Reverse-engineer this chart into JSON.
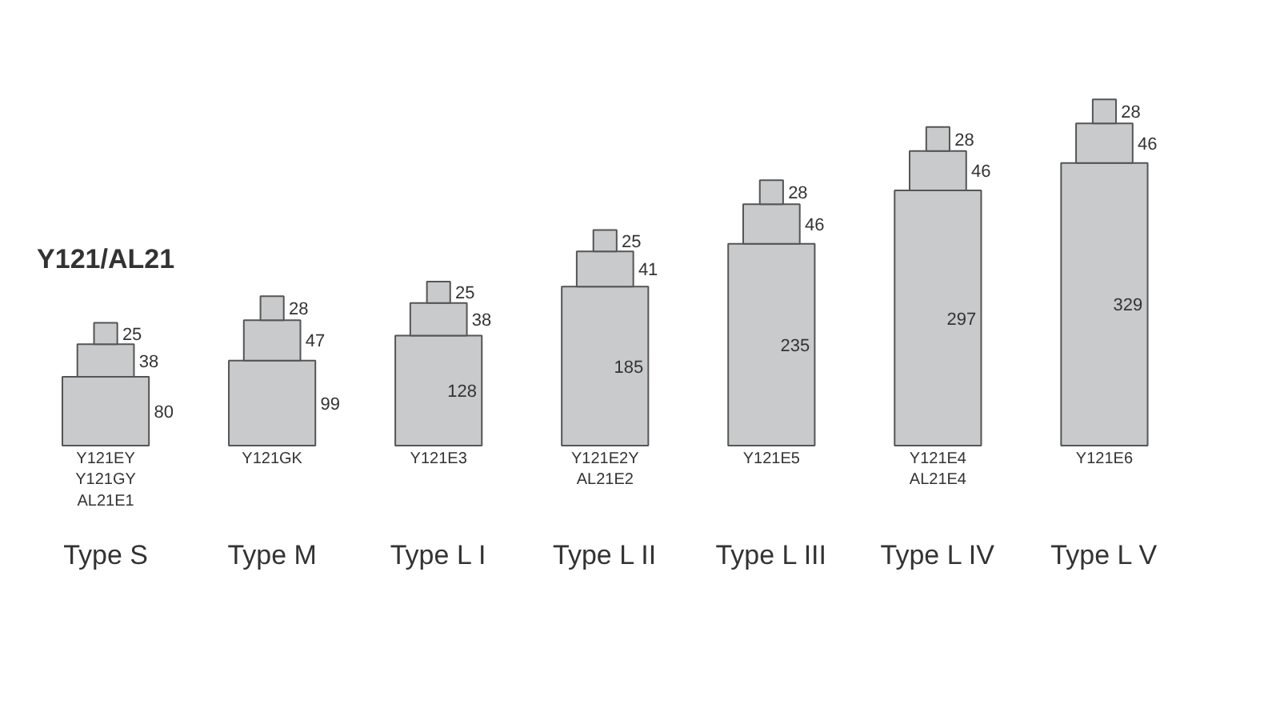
{
  "chart_data": {
    "type": "bar",
    "stacked": true,
    "title": "Y121/AL21",
    "categories": [
      "Type S",
      "Type M",
      "Type L I",
      "Type L II",
      "Type L III",
      "Type L IV",
      "Type L V"
    ],
    "series": [
      {
        "color": "#c9cacc",
        "values": [
          80,
          99,
          128,
          185,
          235,
          297,
          329
        ]
      },
      {
        "color": "#c9cacc",
        "values": [
          38,
          47,
          38,
          41,
          46,
          46,
          46
        ]
      },
      {
        "color": "#c9cacc",
        "values": [
          25,
          28,
          25,
          25,
          28,
          28,
          28
        ]
      }
    ],
    "data_labels": true,
    "tick_labels": "x",
    "grid": false,
    "annotations": [
      "Y121EY\nY121GY\nAL21E1",
      "Y121GK",
      "Y121E3",
      "Y121E2Y\nAL21E2",
      "Y121E5",
      "Y121E4\nAL21E4",
      "Y121E6"
    ]
  }
}
